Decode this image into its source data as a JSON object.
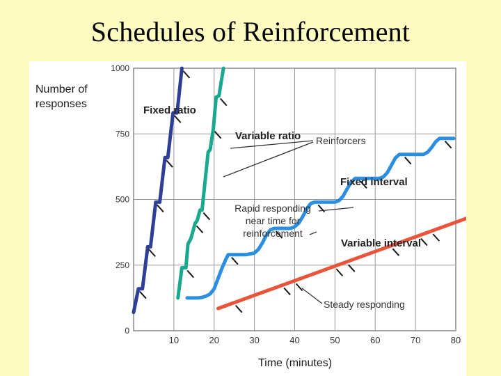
{
  "slide": {
    "title": "Schedules of Reinforcement"
  },
  "chart_data": {
    "type": "line",
    "ylabel_lines": [
      "Number of",
      "responses"
    ],
    "xlabel": "Time (minutes)",
    "xlim": [
      0,
      80
    ],
    "ylim": [
      0,
      1000
    ],
    "xticks": [
      10,
      20,
      30,
      40,
      50,
      60,
      70,
      80
    ],
    "yticks": [
      0,
      250,
      500,
      750,
      1000
    ],
    "grid": true,
    "series": [
      {
        "name": "Fixed ratio",
        "color": "#2e3f95",
        "x": [
          0,
          1.2,
          2.2,
          3.5,
          4.2,
          5.5,
          6.5,
          7.8,
          8.5,
          9.8,
          10.8,
          12
        ],
        "y": [
          70,
          160,
          160,
          320,
          320,
          490,
          490,
          660,
          660,
          830,
          830,
          1000
        ],
        "reinforcers": [
          [
            1.2,
            160
          ],
          [
            3.5,
            320
          ],
          [
            5.5,
            490
          ],
          [
            7.8,
            660
          ],
          [
            9.8,
            830
          ],
          [
            12,
            1000
          ]
        ]
      },
      {
        "name": "Variable ratio",
        "color": "#1aa88e",
        "x": [
          11,
          12,
          13,
          13.5,
          14.2,
          15.3,
          15.8,
          16.5,
          17,
          18.5,
          19,
          19.8,
          20.5,
          21.2,
          22.3
        ],
        "y": [
          125,
          240,
          240,
          330,
          350,
          410,
          420,
          460,
          460,
          680,
          690,
          770,
          890,
          895,
          1000
        ],
        "reinforcers": [
          [
            13,
            240
          ],
          [
            15.3,
            410
          ],
          [
            17,
            460
          ],
          [
            19.8,
            770
          ],
          [
            21.2,
            895
          ]
        ]
      },
      {
        "name": "Fixed interval",
        "color": "#2b8ee0",
        "x": [
          13.3,
          14,
          15,
          16,
          17,
          18,
          19,
          20,
          21,
          22,
          23,
          23.5,
          25,
          28,
          30,
          31,
          32,
          33,
          34,
          35,
          36,
          39,
          40,
          41,
          42,
          43,
          44,
          45,
          46,
          50,
          51,
          52,
          53,
          54,
          55,
          56,
          57,
          61,
          62,
          63,
          64,
          65,
          66,
          67,
          68,
          72,
          73,
          74,
          75,
          76,
          77,
          78,
          79.5
        ],
        "y": [
          125,
          125,
          125,
          125,
          127,
          132,
          140,
          160,
          200,
          240,
          275,
          290,
          290,
          290,
          296,
          310,
          335,
          365,
          385,
          390,
          390,
          390,
          396,
          410,
          435,
          465,
          485,
          490,
          490,
          490,
          496,
          512,
          540,
          565,
          580,
          580,
          580,
          580,
          586,
          602,
          630,
          658,
          672,
          672,
          672,
          672,
          680,
          698,
          720,
          733,
          733,
          733,
          733
        ],
        "reinforcers": [
          [
            24,
            290
          ],
          [
            35,
            390
          ],
          [
            45.5,
            490
          ],
          [
            56,
            580
          ],
          [
            67,
            672
          ],
          [
            77,
            733
          ]
        ]
      },
      {
        "name": "Variable interval",
        "color": "#e8553a",
        "x": [
          21,
          83
        ],
        "y": [
          85,
          430
        ],
        "reinforcers": [
          [
            25,
            107
          ],
          [
            37,
            174
          ],
          [
            40,
            190
          ],
          [
            50,
            246
          ],
          [
            53,
            262
          ],
          [
            64,
            323
          ],
          [
            71,
            362
          ],
          [
            74,
            379
          ]
        ]
      }
    ],
    "annotations": [
      {
        "id": "reinforcers",
        "text": "Reinforcers"
      },
      {
        "id": "rapid",
        "lines": [
          "Rapid responding",
          "near time for",
          "reinforcement"
        ]
      },
      {
        "id": "steady",
        "text": "Steady responding"
      }
    ]
  }
}
